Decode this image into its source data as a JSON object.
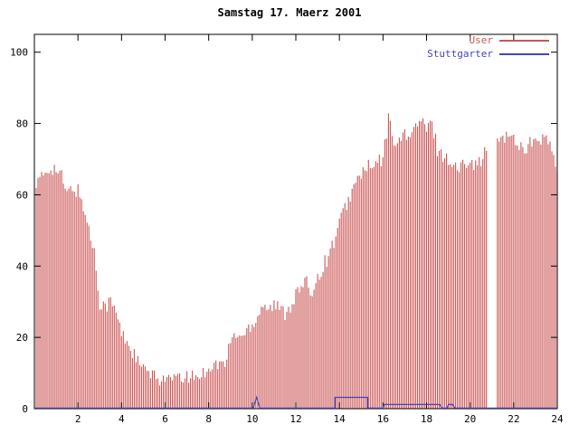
{
  "chart_data": {
    "type": "bar",
    "title": "Samstag 17. Maerz 2001",
    "xlabel": "",
    "ylabel": "",
    "xlim": [
      0,
      24
    ],
    "ylim": [
      0,
      105
    ],
    "x_ticks": [
      2,
      4,
      6,
      8,
      10,
      12,
      14,
      16,
      18,
      20,
      22,
      24
    ],
    "y_ticks": [
      0,
      20,
      40,
      60,
      80,
      100
    ],
    "x_unit": "hour-of-day",
    "sample_step_hours": 0.25,
    "grid": false,
    "legend_position": "top-right-inside",
    "series": [
      {
        "name": "User",
        "style": "impulses",
        "color": "#cc5555",
        "values": [
          62,
          64,
          66,
          68,
          67,
          65,
          60,
          62,
          61,
          57,
          50,
          44,
          30,
          29,
          30,
          27,
          21,
          19,
          16,
          13,
          11,
          10,
          9,
          8,
          9,
          8,
          9,
          8,
          9,
          9,
          9,
          10,
          12,
          12,
          13,
          12,
          19,
          21,
          20,
          22,
          24,
          26,
          30,
          28,
          29,
          28,
          27,
          29,
          32,
          34,
          35,
          33,
          37,
          40,
          43,
          47,
          52,
          56,
          60,
          63,
          66,
          68,
          67,
          69,
          70,
          81,
          76,
          74,
          78,
          76,
          79,
          81,
          78,
          80,
          73,
          71,
          70,
          68,
          67,
          69,
          71,
          68,
          70,
          72,
          null,
          75,
          77,
          76,
          76,
          74,
          73,
          75,
          74,
          76,
          75,
          73,
          65
        ]
      },
      {
        "name": "Stuttgarter",
        "style": "step-line",
        "color": "#4444bb",
        "points": [
          [
            0,
            0
          ],
          [
            10.05,
            0
          ],
          [
            10.2,
            3
          ],
          [
            10.35,
            0
          ],
          [
            13.8,
            0
          ],
          [
            13.8,
            3
          ],
          [
            15.3,
            3
          ],
          [
            15.3,
            0
          ],
          [
            16.0,
            0
          ],
          [
            16.05,
            1
          ],
          [
            18.6,
            1
          ],
          [
            18.7,
            0
          ],
          [
            18.95,
            0
          ],
          [
            19.0,
            1
          ],
          [
            19.2,
            1
          ],
          [
            19.3,
            0
          ],
          [
            24,
            0
          ]
        ]
      }
    ]
  }
}
